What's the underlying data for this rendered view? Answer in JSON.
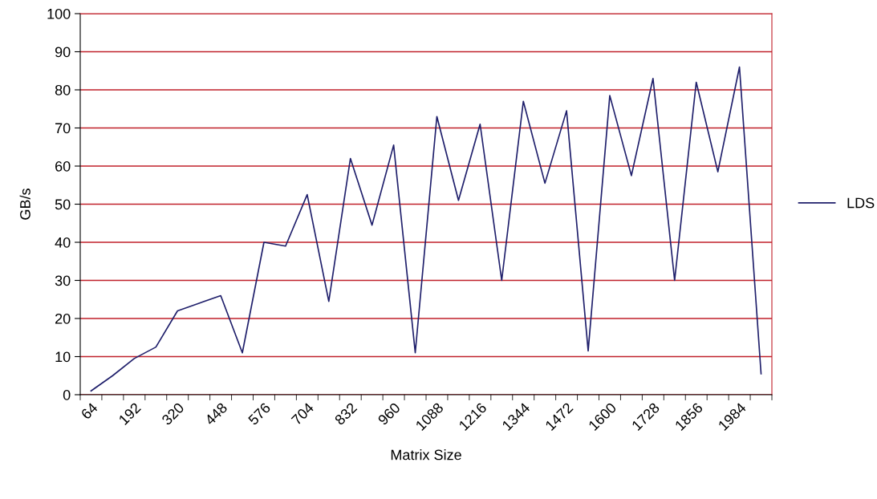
{
  "chart_data": {
    "type": "line",
    "xlabel": "Matrix Size",
    "ylabel": "GB/s",
    "categories": [
      "64",
      null,
      "192",
      null,
      "320",
      null,
      "448",
      null,
      "576",
      null,
      "704",
      null,
      "832",
      null,
      "960",
      null,
      "1088",
      null,
      "1216",
      null,
      "1344",
      null,
      "1472",
      null,
      "1600",
      null,
      "1728",
      null,
      "1856",
      null,
      "1984",
      null
    ],
    "series": [
      {
        "name": "LDS",
        "color": "#1f1f6b",
        "values": [
          1,
          5,
          9.5,
          12.5,
          22,
          24,
          26,
          11,
          40,
          39,
          52.5,
          24.5,
          62,
          44.5,
          65.5,
          11,
          73,
          51,
          71,
          30,
          77,
          55.5,
          74.5,
          11.5,
          78.5,
          57.5,
          83,
          30,
          82,
          58.5,
          86,
          5.5
        ]
      }
    ],
    "ylim": [
      0,
      100
    ],
    "yticks": [
      0,
      10,
      20,
      30,
      40,
      50,
      60,
      70,
      80,
      90,
      100
    ],
    "grid": "y",
    "legend": "right",
    "marker": "none",
    "line_style": "solid"
  }
}
